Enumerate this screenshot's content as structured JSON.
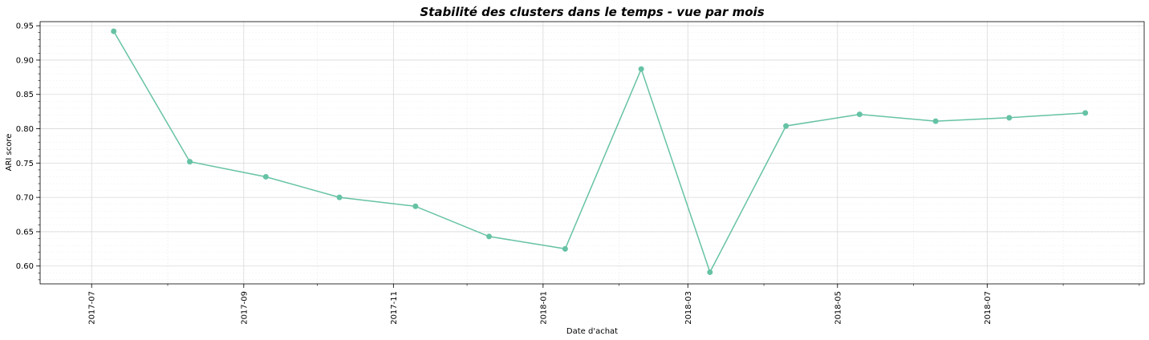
{
  "chart_data": {
    "type": "line",
    "title": "Stabilité des clusters dans le temps - vue par mois",
    "xlabel": "Date d'achat",
    "ylabel": "ARI score",
    "x_ticks": [
      "2017-07",
      "2017-09",
      "2017-11",
      "2018-01",
      "2018-03",
      "2018-05",
      "2018-07"
    ],
    "y_ticks": [
      "0.60",
      "0.65",
      "0.70",
      "0.75",
      "0.80",
      "0.85",
      "0.90",
      "0.95"
    ],
    "ylim": [
      0.574,
      0.956
    ],
    "xlim": [
      "2017-06-10",
      "2018-09-03"
    ],
    "grid": true,
    "series": [
      {
        "color": "#66c2a5",
        "points": [
          {
            "x": "2017-07-10",
            "y": 0.942
          },
          {
            "x": "2017-08-10",
            "y": 0.752
          },
          {
            "x": "2017-09-10",
            "y": 0.73
          },
          {
            "x": "2017-10-10",
            "y": 0.7
          },
          {
            "x": "2017-11-10",
            "y": 0.687
          },
          {
            "x": "2017-12-10",
            "y": 0.643
          },
          {
            "x": "2018-01-10",
            "y": 0.625
          },
          {
            "x": "2018-02-10",
            "y": 0.887
          },
          {
            "x": "2018-03-10",
            "y": 0.591
          },
          {
            "x": "2018-04-10",
            "y": 0.804
          },
          {
            "x": "2018-05-10",
            "y": 0.821
          },
          {
            "x": "2018-06-10",
            "y": 0.811
          },
          {
            "x": "2018-07-10",
            "y": 0.816
          },
          {
            "x": "2018-08-10",
            "y": 0.823
          }
        ]
      }
    ]
  }
}
